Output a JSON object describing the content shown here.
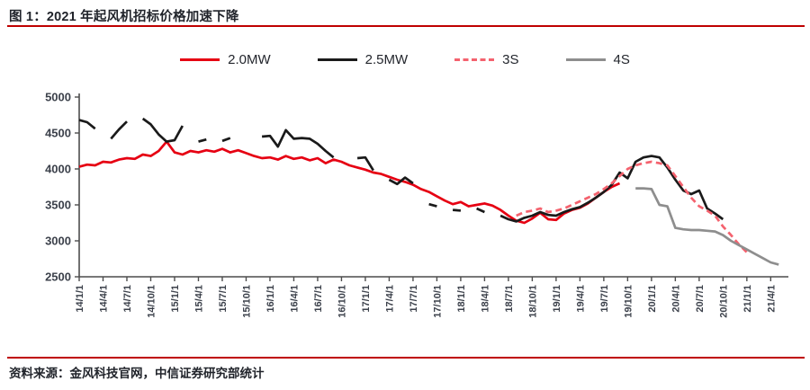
{
  "page": {
    "title": "图 1：2021 年起风机招标价格加速下降",
    "source": "资料来源：金风科技官网，中信证券研究部统计"
  },
  "colors": {
    "accent_rule": "#bf0000",
    "series_20mw": "#e60012",
    "series_25mw": "#1a1a1a",
    "series_3s": "#f4626e",
    "series_4s": "#8e8e8e",
    "axis": "#4c4c4c",
    "tick_text": "#3c414b"
  },
  "legend": [
    {
      "label": "2.0MW",
      "color": "#e60012",
      "dashed": false
    },
    {
      "label": "2.5MW",
      "color": "#1a1a1a",
      "dashed": false
    },
    {
      "label": "3S",
      "color": "#f4626e",
      "dashed": true
    },
    {
      "label": "4S",
      "color": "#8e8e8e",
      "dashed": false
    }
  ],
  "chart_data": {
    "type": "line",
    "grid": false,
    "legend_position": "top",
    "ylim": [
      2500,
      5000
    ],
    "yticks": [
      2500,
      3000,
      3500,
      4000,
      4500,
      5000
    ],
    "tick_labels": [
      "14/1/1",
      "14/4/1",
      "14/7/1",
      "14/10/1",
      "15/1/1",
      "15/4/1",
      "15/7/1",
      "15/10/1",
      "16/1/1",
      "16/4/1",
      "16/7/1",
      "16/10/1",
      "17/1/1",
      "17/4/1",
      "17/7/1",
      "17/10/1",
      "18/1/1",
      "18/4/1",
      "18/7/1",
      "18/10/1",
      "19/1/1",
      "19/4/1",
      "19/7/1",
      "19/10/1",
      "20/1/1",
      "20/4/1",
      "20/7/1",
      "20/10/1",
      "21/1/1",
      "21/4/1"
    ],
    "x": [
      "14/1",
      "14/2",
      "14/3",
      "14/4",
      "14/5",
      "14/6",
      "14/7",
      "14/8",
      "14/9",
      "14/10",
      "14/11",
      "14/12",
      "15/1",
      "15/2",
      "15/3",
      "15/4",
      "15/5",
      "15/6",
      "15/7",
      "15/8",
      "15/9",
      "15/10",
      "15/11",
      "15/12",
      "16/1",
      "16/2",
      "16/3",
      "16/4",
      "16/5",
      "16/6",
      "16/7",
      "16/8",
      "16/9",
      "16/10",
      "16/11",
      "16/12",
      "17/1",
      "17/2",
      "17/3",
      "17/4",
      "17/5",
      "17/6",
      "17/7",
      "17/8",
      "17/9",
      "17/10",
      "17/11",
      "17/12",
      "18/1",
      "18/2",
      "18/3",
      "18/4",
      "18/5",
      "18/6",
      "18/7",
      "18/8",
      "18/9",
      "18/10",
      "18/11",
      "18/12",
      "19/1",
      "19/2",
      "19/3",
      "19/4",
      "19/5",
      "19/6",
      "19/7",
      "19/8",
      "19/9",
      "19/10",
      "19/11",
      "19/12",
      "20/1",
      "20/2",
      "20/3",
      "20/4",
      "20/5",
      "20/6",
      "20/7",
      "20/8",
      "20/9",
      "20/10",
      "20/11",
      "20/12",
      "21/1",
      "21/2",
      "21/3",
      "21/4",
      "21/5",
      "21/6"
    ],
    "series": [
      {
        "name": "2.0MW",
        "color": "#e60012",
        "dashed": false,
        "values": [
          4030,
          4060,
          4050,
          4100,
          4090,
          4130,
          4150,
          4140,
          4200,
          4180,
          4250,
          4380,
          4230,
          4200,
          4250,
          4230,
          4260,
          4240,
          4280,
          4230,
          4260,
          4220,
          4180,
          4150,
          4160,
          4130,
          4180,
          4140,
          4160,
          4120,
          4150,
          4080,
          4130,
          4100,
          4050,
          4020,
          3990,
          3950,
          3930,
          3890,
          3850,
          3820,
          3780,
          3720,
          3680,
          3620,
          3560,
          3510,
          3540,
          3480,
          3500,
          3520,
          3490,
          3430,
          3350,
          3280,
          3250,
          3310,
          3390,
          3300,
          3290,
          3380,
          3430,
          3460,
          3520,
          3600,
          3680,
          3750,
          3800,
          null,
          null,
          null,
          null,
          null,
          null,
          null,
          null,
          null,
          null,
          null,
          null,
          null,
          null,
          null,
          null,
          null,
          null,
          null,
          null,
          null
        ]
      },
      {
        "name": "2.5MW",
        "color": "#1a1a1a",
        "dashed": false,
        "values": [
          4680,
          4650,
          4560,
          null,
          4420,
          4550,
          4660,
          null,
          4700,
          4620,
          4480,
          4380,
          4400,
          4600,
          null,
          4380,
          4410,
          null,
          4390,
          4430,
          null,
          null,
          null,
          4450,
          4460,
          4310,
          4540,
          4420,
          4430,
          4420,
          4350,
          4250,
          4160,
          null,
          null,
          4150,
          4160,
          3980,
          null,
          3850,
          3790,
          3880,
          3800,
          null,
          3510,
          3480,
          null,
          3430,
          3420,
          null,
          3450,
          3400,
          null,
          3350,
          3300,
          3270,
          3320,
          3350,
          3400,
          3360,
          3350,
          3400,
          3440,
          3470,
          3530,
          3600,
          3680,
          3780,
          3950,
          3870,
          4100,
          4160,
          4180,
          4160,
          4020,
          3850,
          3700,
          3650,
          3700,
          3450,
          3380,
          3300,
          null,
          null,
          null,
          null,
          null,
          null,
          null,
          null
        ]
      },
      {
        "name": "3S",
        "color": "#f4626e",
        "dashed": true,
        "values": [
          null,
          null,
          null,
          null,
          null,
          null,
          null,
          null,
          null,
          null,
          null,
          null,
          null,
          null,
          null,
          null,
          null,
          null,
          null,
          null,
          null,
          null,
          null,
          null,
          null,
          null,
          null,
          null,
          null,
          null,
          null,
          null,
          null,
          null,
          null,
          null,
          null,
          null,
          null,
          null,
          null,
          null,
          null,
          null,
          null,
          null,
          null,
          null,
          null,
          null,
          null,
          null,
          null,
          null,
          null,
          3350,
          3400,
          3420,
          3450,
          3400,
          3420,
          3450,
          3500,
          3550,
          3600,
          3650,
          3720,
          3800,
          3900,
          4000,
          4050,
          4080,
          4100,
          4080,
          4050,
          3900,
          3750,
          3600,
          3480,
          3420,
          3350,
          3200,
          3080,
          2950,
          2840,
          null,
          null,
          null,
          null,
          null
        ]
      },
      {
        "name": "4S",
        "color": "#8e8e8e",
        "dashed": false,
        "values": [
          null,
          null,
          null,
          null,
          null,
          null,
          null,
          null,
          null,
          null,
          null,
          null,
          null,
          null,
          null,
          null,
          null,
          null,
          null,
          null,
          null,
          null,
          null,
          null,
          null,
          null,
          null,
          null,
          null,
          null,
          null,
          null,
          null,
          null,
          null,
          null,
          null,
          null,
          null,
          null,
          null,
          null,
          null,
          null,
          null,
          null,
          null,
          null,
          null,
          null,
          null,
          null,
          null,
          null,
          null,
          null,
          null,
          null,
          null,
          null,
          null,
          null,
          null,
          null,
          null,
          null,
          null,
          null,
          null,
          null,
          3730,
          3730,
          3720,
          3500,
          3480,
          3180,
          3160,
          3150,
          3150,
          3140,
          3130,
          3080,
          3000,
          2940,
          2880,
          2820,
          2760,
          2700,
          2670,
          null
        ]
      }
    ]
  }
}
